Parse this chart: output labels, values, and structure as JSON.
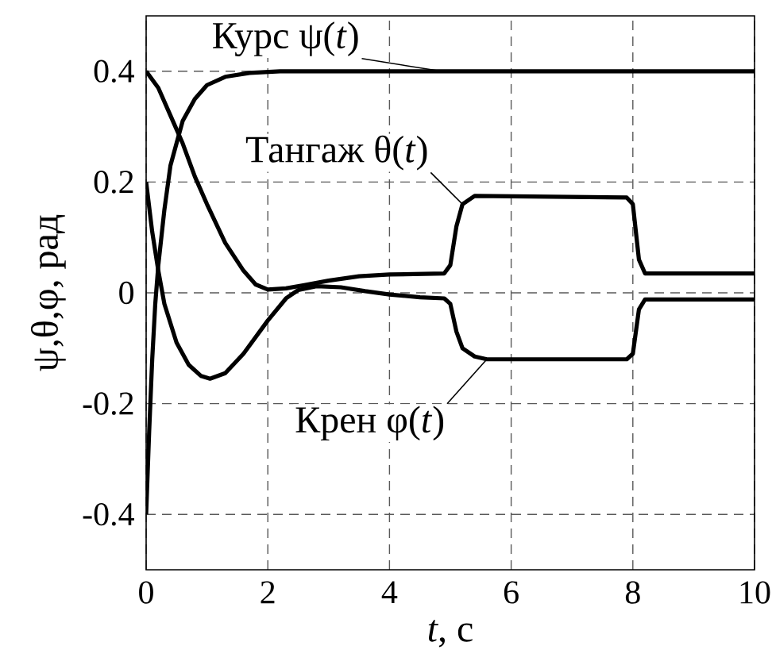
{
  "chart_data": {
    "type": "line",
    "xlabel": "*t*, с",
    "ylabel": "ψ,θ,φ, рад",
    "xlim": [
      0,
      10
    ],
    "ylim": [
      -0.5,
      0.5
    ],
    "xticks": [
      0,
      2,
      4,
      6,
      8,
      10
    ],
    "yticks": [
      -0.4,
      -0.2,
      0,
      0.2,
      0.4
    ],
    "grid": true,
    "marker": "none",
    "line_style": "solid",
    "series": [
      {
        "name": "Курс  ψ(*t*)",
        "color": "#000000",
        "x": [
          0,
          0.05,
          0.1,
          0.15,
          0.2,
          0.3,
          0.4,
          0.5,
          0.6,
          0.8,
          1.0,
          1.3,
          1.7,
          2.2,
          4.85,
          10
        ],
        "values": [
          -0.4,
          -0.25,
          -0.12,
          -0.02,
          0.05,
          0.15,
          0.23,
          0.27,
          0.31,
          0.35,
          0.375,
          0.39,
          0.397,
          0.4,
          0.4,
          0.4
        ]
      },
      {
        "name": "Тангаж θ(*t*)",
        "color": "#000000",
        "x": [
          0,
          0.2,
          0.4,
          0.6,
          0.8,
          1.0,
          1.3,
          1.6,
          1.8,
          2.0,
          2.3,
          2.6,
          3.0,
          3.5,
          4.0,
          4.9,
          5.0,
          5.1,
          5.2,
          5.4,
          7.9,
          8.0,
          8.1,
          8.2,
          10
        ],
        "values": [
          0.4,
          0.37,
          0.32,
          0.27,
          0.21,
          0.16,
          0.09,
          0.04,
          0.015,
          0.006,
          0.008,
          0.014,
          0.022,
          0.03,
          0.033,
          0.035,
          0.05,
          0.12,
          0.16,
          0.175,
          0.172,
          0.16,
          0.06,
          0.035,
          0.035
        ]
      },
      {
        "name": "Крен φ(*t*)",
        "color": "#000000",
        "x": [
          0,
          0.1,
          0.2,
          0.3,
          0.5,
          0.7,
          0.9,
          1.05,
          1.3,
          1.6,
          2.0,
          2.3,
          2.5,
          2.8,
          3.2,
          3.6,
          4.0,
          4.5,
          4.9,
          5.0,
          5.1,
          5.2,
          5.4,
          5.6,
          7.9,
          8.0,
          8.1,
          8.2,
          10
        ],
        "values": [
          0.2,
          0.11,
          0.04,
          -0.02,
          -0.09,
          -0.13,
          -0.15,
          -0.155,
          -0.145,
          -0.11,
          -0.05,
          -0.01,
          0.005,
          0.012,
          0.01,
          0.003,
          -0.003,
          -0.008,
          -0.01,
          -0.02,
          -0.07,
          -0.1,
          -0.115,
          -0.12,
          -0.12,
          -0.11,
          -0.03,
          -0.012,
          -0.012
        ]
      }
    ]
  }
}
